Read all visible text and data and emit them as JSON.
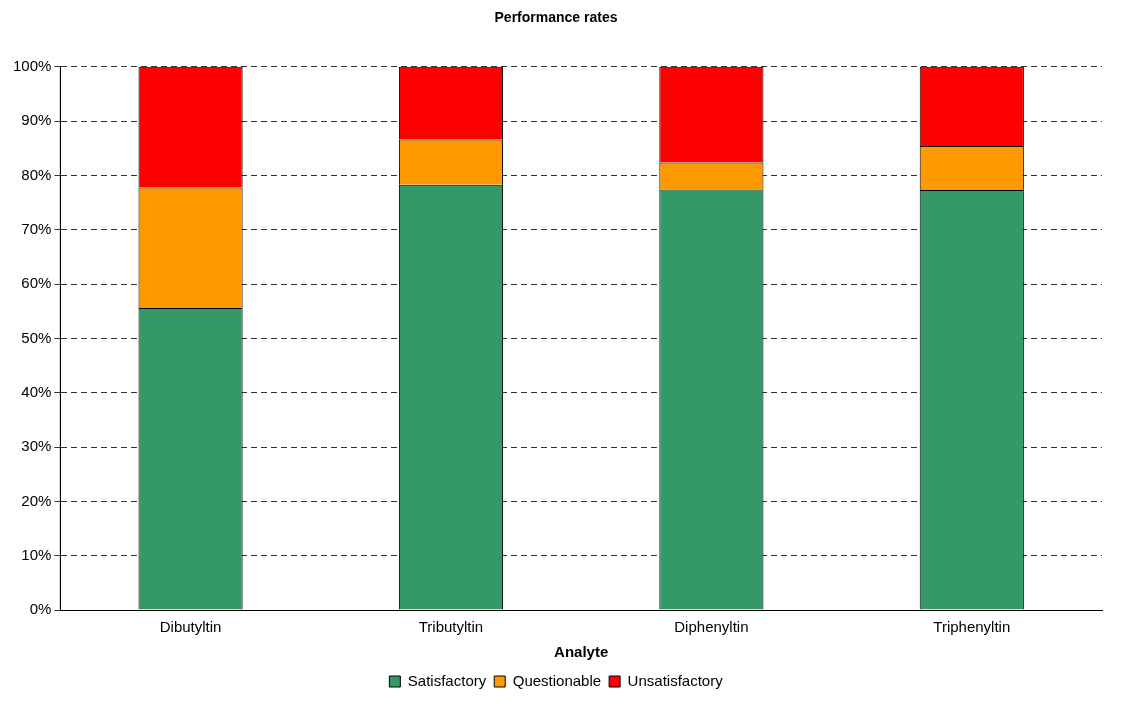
{
  "chart_data": {
    "type": "bar",
    "title": "Performance rates",
    "xlabel": "Analyte",
    "categories": [
      "Dibutyltin",
      "Tributyltin",
      "Diphenyltin",
      "Triphenyltin"
    ],
    "stacked": true,
    "series": [
      {
        "name": "Satisfactory",
        "color": "#339966",
        "values": [
          55.6,
          78.3,
          77.4,
          77.3
        ]
      },
      {
        "name": "Questionable",
        "color": "#ff9900",
        "values": [
          22.2,
          8.3,
          5.0,
          8.1
        ]
      },
      {
        "name": "Unsatisfactory",
        "color": "#ff0000",
        "values": [
          22.2,
          13.4,
          17.6,
          14.6
        ]
      }
    ],
    "ylim": [
      0,
      100
    ],
    "yticks": [
      {
        "value": 0,
        "label": "0%"
      },
      {
        "value": 10,
        "label": "10%"
      },
      {
        "value": 20,
        "label": "20%"
      },
      {
        "value": 30,
        "label": "30%"
      },
      {
        "value": 40,
        "label": "40%"
      },
      {
        "value": 50,
        "label": "50%"
      },
      {
        "value": 60,
        "label": "60%"
      },
      {
        "value": 70,
        "label": "70%"
      },
      {
        "value": 80,
        "label": "80%"
      },
      {
        "value": 90,
        "label": "90%"
      },
      {
        "value": 100,
        "label": "100%"
      }
    ],
    "grid": "y",
    "legend": "bottom"
  }
}
